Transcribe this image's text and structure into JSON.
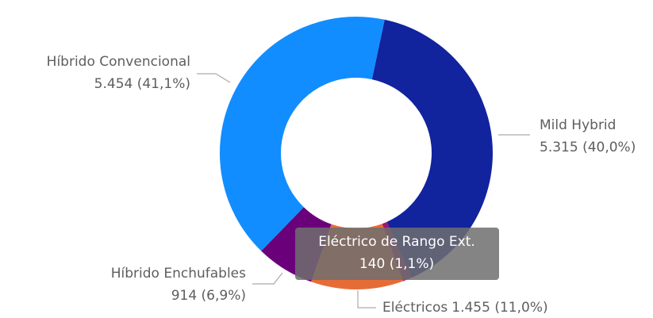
{
  "chart_data": {
    "type": "donut",
    "categories": [
      "Mild Hybrid",
      "Eléctrico de Rango Ext.",
      "Eléctricos",
      "Híbrido Enchufables",
      "Híbrido Convencional"
    ],
    "values": [
      5315,
      140,
      1455,
      914,
      5454
    ],
    "value_labels": [
      "5.315 (40,0%)",
      "140 (1,1%)",
      "1.455 (11,0%)",
      "914 (6,9%)",
      "5.454 (41,1%)"
    ],
    "colors": [
      "#12239E",
      "#A0176A",
      "#E66C37",
      "#6B007B",
      "#118DFF"
    ]
  }
}
